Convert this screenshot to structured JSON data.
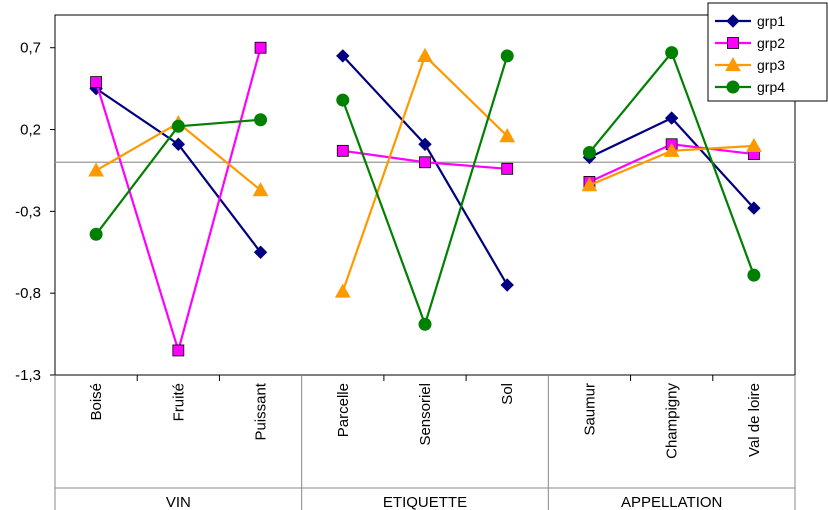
{
  "chart_data": {
    "type": "line",
    "title": "",
    "xlabel": "",
    "ylabel": "",
    "ylim": [
      -1.3,
      0.9
    ],
    "yticks": [
      -1.3,
      -0.8,
      -0.3,
      0.2,
      0.7
    ],
    "ytick_labels": [
      "-1,3",
      "-0,8",
      "-0,3",
      "0,2",
      "0,7"
    ],
    "reference_line": 0,
    "grid": false,
    "legend_position": "top-right",
    "groups": [
      {
        "label": "VIN",
        "categories": [
          "Boisé",
          "Fruité",
          "Puissant"
        ]
      },
      {
        "label": "ETIQUETTE",
        "categories": [
          "Parcelle",
          "Sensoriel",
          "Sol"
        ]
      },
      {
        "label": "APPELLATION",
        "categories": [
          "Saumur",
          "Champigny",
          "Val de loire"
        ]
      }
    ],
    "categories": [
      "Boisé",
      "Fruité",
      "Puissant",
      "Parcelle",
      "Sensoriel",
      "Sol",
      "Saumur",
      "Champigny",
      "Val de loire"
    ],
    "series": [
      {
        "name": "grp1",
        "color": "#000080",
        "marker": "diamond",
        "values": [
          0.45,
          0.11,
          -0.55,
          0.65,
          0.11,
          -0.75,
          0.03,
          0.27,
          -0.28
        ]
      },
      {
        "name": "grp2",
        "color": "#ff00ff",
        "marker": "square",
        "values": [
          0.49,
          -1.15,
          0.7,
          0.07,
          0.0,
          -0.04,
          -0.12,
          0.11,
          0.05
        ]
      },
      {
        "name": "grp3",
        "color": "#ff9900",
        "marker": "triangle",
        "values": [
          -0.05,
          0.24,
          -0.17,
          -0.79,
          0.65,
          0.16,
          -0.14,
          0.07,
          0.1
        ]
      },
      {
        "name": "grp4",
        "color": "#008000",
        "marker": "circle",
        "values": [
          -0.44,
          0.22,
          0.26,
          0.38,
          -0.99,
          0.65,
          0.06,
          0.67,
          -0.69
        ]
      }
    ]
  }
}
